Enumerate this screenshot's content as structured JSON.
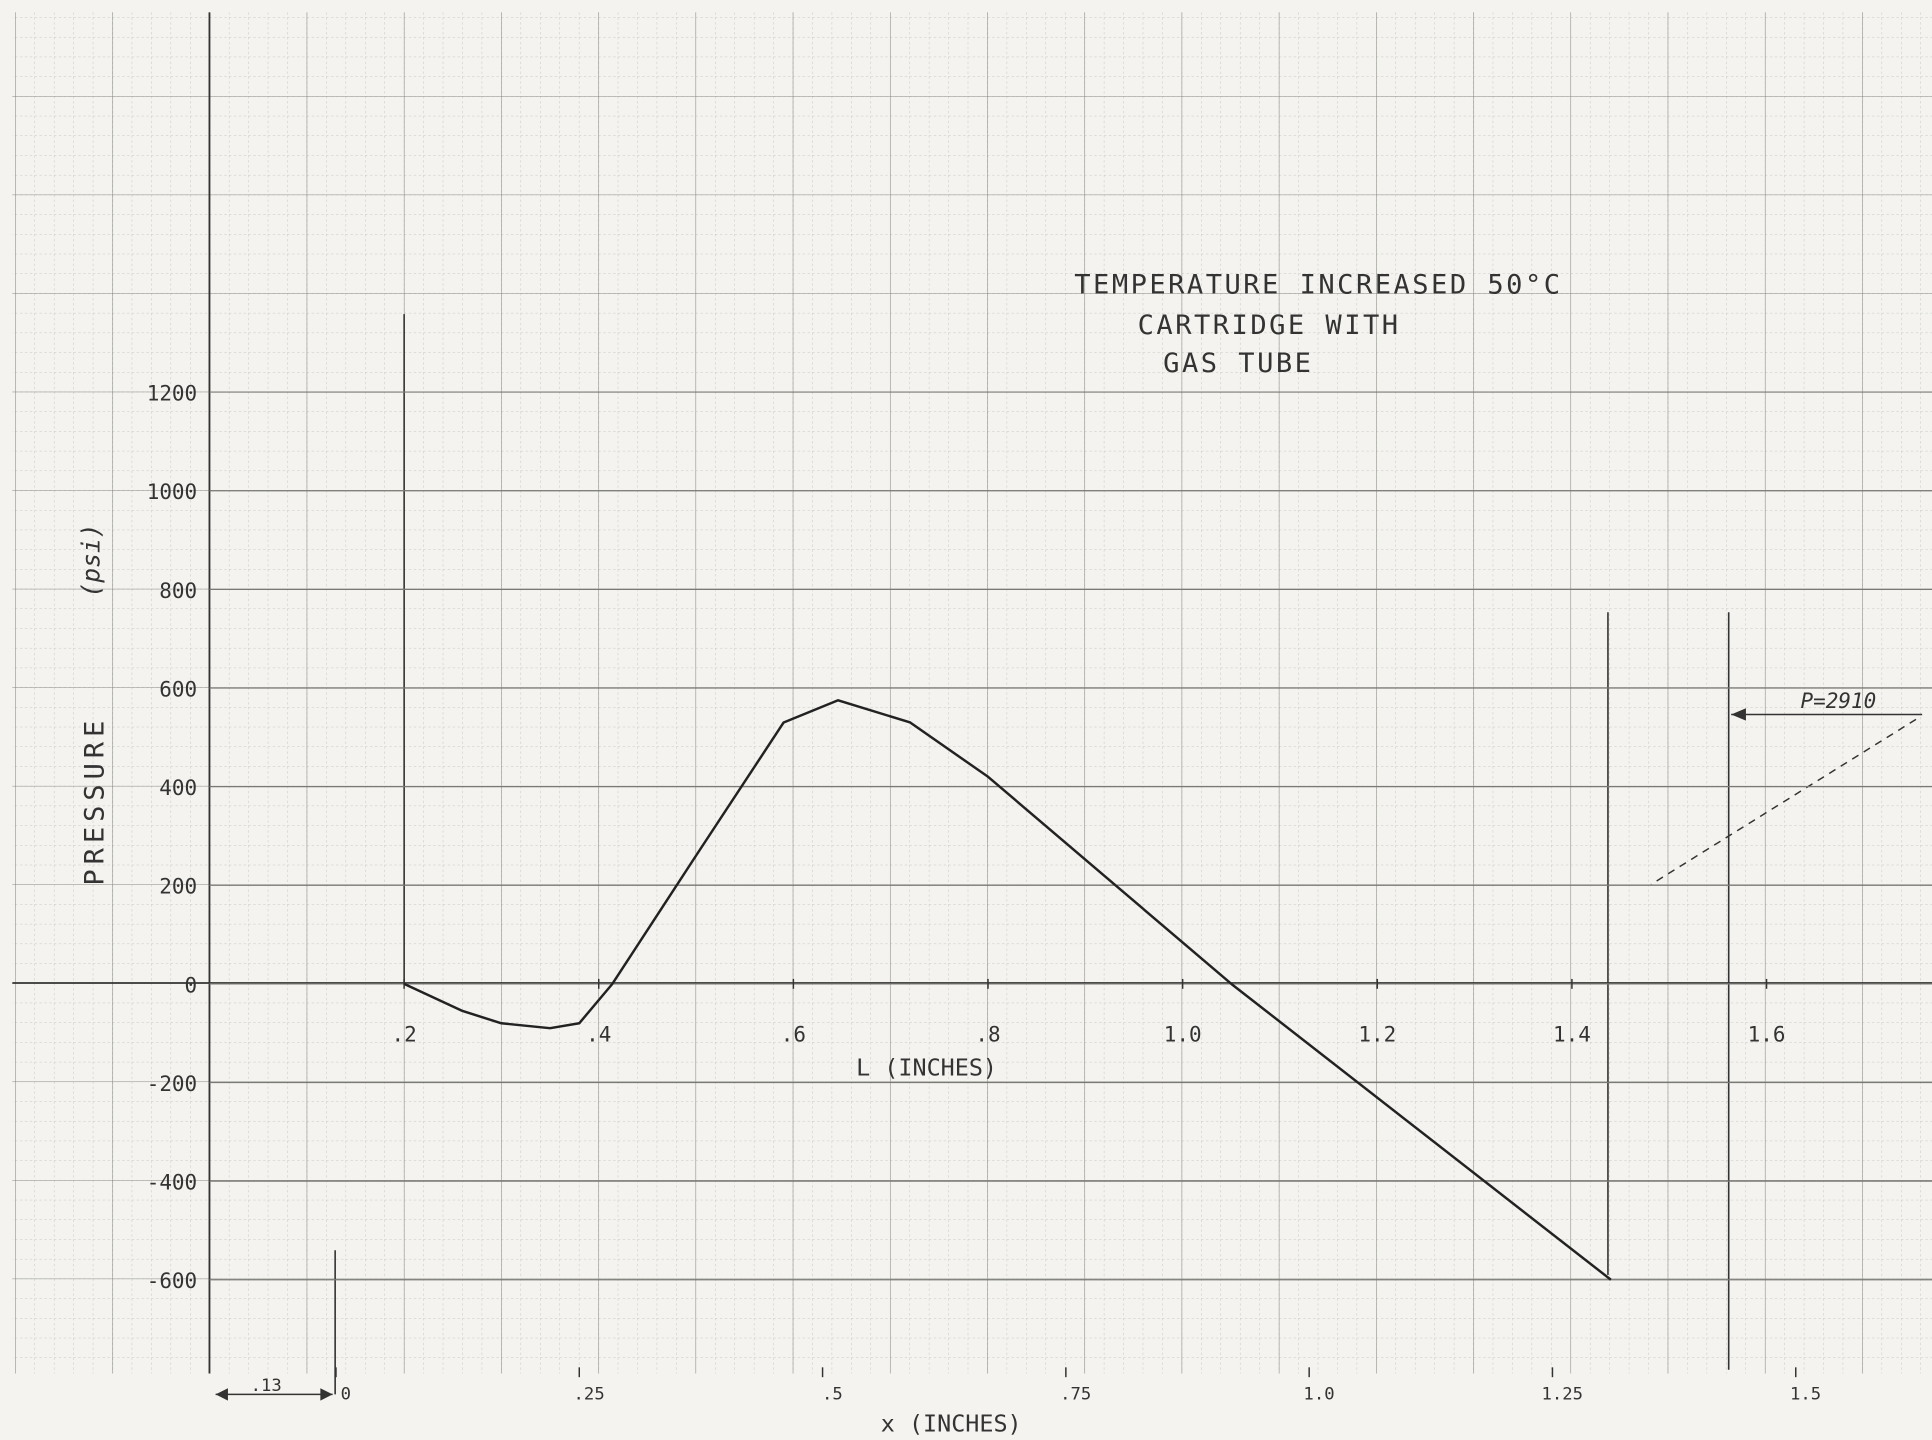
{
  "chart_data": {
    "type": "line",
    "title": [
      "TEMPERATURE INCREASED 50°C",
      "CARTRIDGE WITH",
      "GAS TUBE"
    ],
    "ylabel": "PRESSURE",
    "ylabel_unit": "(psi)",
    "xlabel": "L (INCHES)",
    "x2label": "x (INCHES)",
    "annotations": [
      ".13",
      "P=2910"
    ],
    "x": [
      0.2,
      0.26,
      0.3,
      0.35,
      0.38,
      0.414,
      0.5,
      0.59,
      0.646,
      0.72,
      0.8,
      1.05,
      1.44
    ],
    "values": [
      0,
      -55,
      -80,
      -90,
      -80,
      0,
      260,
      530,
      575,
      530,
      420,
      0,
      -600
    ],
    "color": "#222222",
    "xlim": [
      0,
      1.77
    ],
    "ylim": [
      -790,
      1970
    ],
    "x2lim": [
      -0.13,
      1.64
    ],
    "yticks": [
      1200,
      1000,
      800,
      600,
      400,
      200,
      0,
      -200,
      -400,
      -600
    ],
    "xticks": [
      {
        "value": 0.2,
        "label": ".2"
      },
      {
        "value": 0.4,
        "label": ".4"
      },
      {
        "value": 0.6,
        "label": ".6"
      },
      {
        "value": 0.8,
        "label": ".8"
      },
      {
        "value": 1.0,
        "label": "1.0"
      },
      {
        "value": 1.2,
        "label": "1.2"
      },
      {
        "value": 1.4,
        "label": "1.4"
      },
      {
        "value": 1.6,
        "label": "1.6"
      }
    ],
    "x2ticks": [
      0,
      {
        "value": 0.25,
        "label": ".25"
      },
      {
        "value": 0.5,
        "label": ".5"
      },
      {
        "value": 0.75,
        "label": ".75"
      },
      {
        "value": 1.0,
        "label": "1.0"
      },
      {
        "value": 1.25,
        "label": "1.25"
      },
      {
        "value": 1.5,
        "label": "1.5"
      }
    ],
    "grid": true
  }
}
